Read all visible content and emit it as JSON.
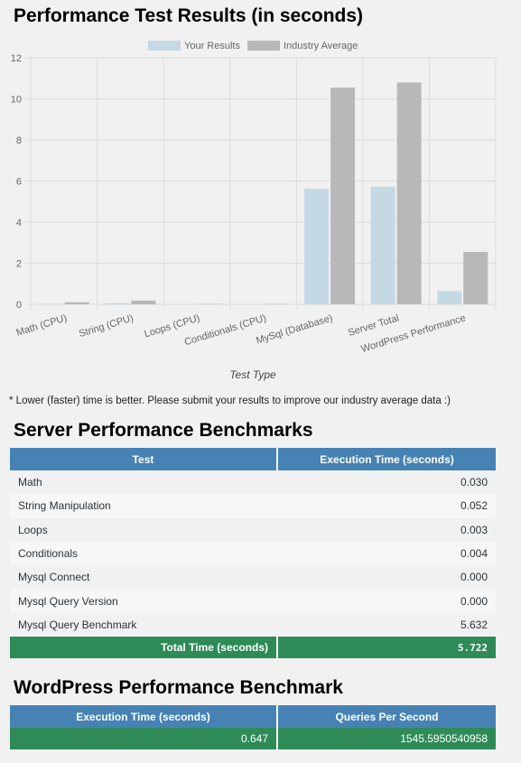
{
  "chart_title": "Performance Test Results (in seconds)",
  "chart_data": {
    "type": "bar",
    "title": "",
    "xlabel": "Test Type",
    "ylabel": "",
    "ylim": [
      0,
      12
    ],
    "yticks": [
      0,
      2,
      4,
      6,
      8,
      10,
      12
    ],
    "legend_position": "top",
    "grid": true,
    "categories": [
      "Math (CPU)",
      "String (CPU)",
      "Loops (CPU)",
      "Conditionals (CPU)",
      "MySql (Database)",
      "Server Total",
      "WordPress Performance"
    ],
    "series": [
      {
        "name": "Your Results",
        "color": "#c5d9e5",
        "values": [
          0.03,
          0.052,
          0.003,
          0.004,
          5.632,
          5.722,
          0.647
        ]
      },
      {
        "name": "Industry Average",
        "color": "#b8b8b8",
        "values": [
          0.1,
          0.18,
          0.02,
          0.02,
          10.55,
          10.8,
          2.55
        ]
      }
    ]
  },
  "note": "* Lower (faster) time is better. Please submit your results to improve our industry average data :)",
  "server": {
    "title": "Server Performance Benchmarks",
    "headers": [
      "Test",
      "Execution Time (seconds)"
    ],
    "rows": [
      {
        "label": "Math",
        "value": "0.030"
      },
      {
        "label": "String Manipulation",
        "value": "0.052"
      },
      {
        "label": "Loops",
        "value": "0.003"
      },
      {
        "label": "Conditionals",
        "value": "0.004"
      },
      {
        "label": "Mysql Connect",
        "value": "0.000"
      },
      {
        "label": "Mysql Query Version",
        "value": "0.000"
      },
      {
        "label": "Mysql Query Benchmark",
        "value": "5.632"
      }
    ],
    "total_label": "Total Time (seconds)",
    "total_value": "5.722"
  },
  "wordpress": {
    "title": "WordPress Performance Benchmark",
    "headers": [
      "Execution Time (seconds)",
      "Queries Per Second"
    ],
    "values": [
      "0.647",
      "1545.5950540958"
    ]
  }
}
